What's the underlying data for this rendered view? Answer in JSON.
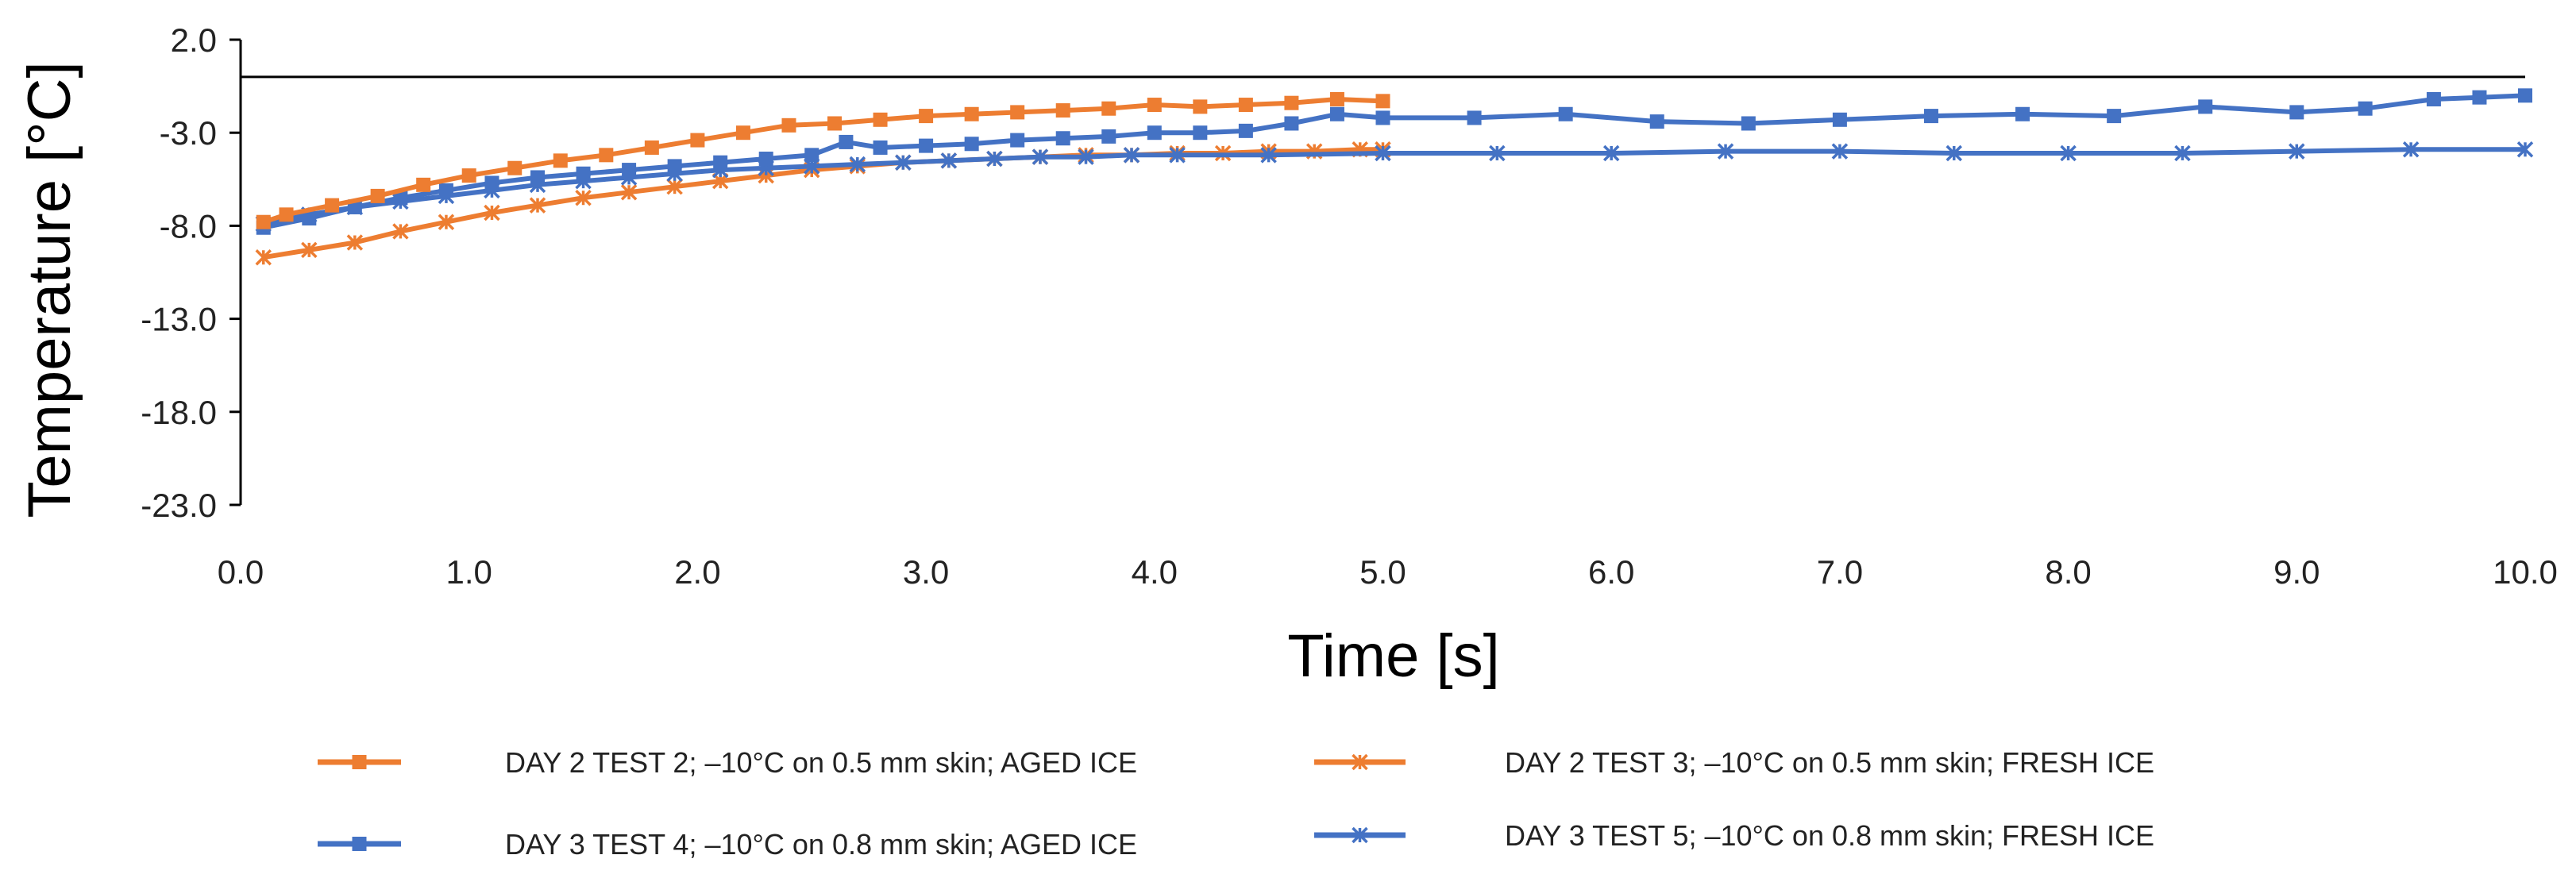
{
  "chart_data": {
    "type": "line",
    "title": "",
    "xlabel": "Time [s]",
    "ylabel": "Temperature [°C]",
    "xlim": [
      0,
      10
    ],
    "ylim": [
      -23,
      2
    ],
    "x_ticks": [
      0,
      1,
      2,
      3,
      4,
      5,
      6,
      7,
      8,
      9,
      10
    ],
    "x_tick_labels": [
      "0.0",
      "1.0",
      "2.0",
      "3.0",
      "4.0",
      "5.0",
      "6.0",
      "7.0",
      "8.0",
      "9.0",
      "10.0"
    ],
    "y_ticks": [
      2,
      -3,
      -8,
      -13,
      -18,
      -23
    ],
    "y_tick_labels": [
      "2.0",
      "-3.0",
      "-8.0",
      "-13.0",
      "-18.0",
      "-23.0"
    ],
    "grid": false,
    "legend_position": "bottom",
    "series": [
      {
        "name": "DAY 2 TEST 2; –10°C on 0.5 mm skin;  AGED ICE",
        "color": "#ED7D31",
        "marker": "square",
        "x": [
          0.1,
          0.2,
          0.4,
          0.6,
          0.8,
          1.0,
          1.2,
          1.4,
          1.6,
          1.8,
          2.0,
          2.2,
          2.4,
          2.6,
          2.8,
          3.0,
          3.2,
          3.4,
          3.6,
          3.8,
          4.0,
          4.2,
          4.4,
          4.6,
          4.8,
          5.0
        ],
        "y": [
          -7.8,
          -7.4,
          -6.9,
          -6.4,
          -5.8,
          -5.3,
          -4.9,
          -4.5,
          -4.2,
          -3.8,
          -3.4,
          -3.0,
          -2.6,
          -2.5,
          -2.3,
          -2.1,
          -2.0,
          -1.9,
          -1.8,
          -1.7,
          -1.5,
          -1.6,
          -1.5,
          -1.4,
          -1.2,
          -1.3
        ]
      },
      {
        "name": "DAY 2 TEST 3; –10°C on 0.5 mm skin;  FRESH ICE",
        "color": "#ED7D31",
        "marker": "star",
        "x": [
          0.1,
          0.3,
          0.5,
          0.7,
          0.9,
          1.1,
          1.3,
          1.5,
          1.7,
          1.9,
          2.1,
          2.3,
          2.5,
          2.7,
          2.9,
          3.1,
          3.3,
          3.5,
          3.7,
          3.9,
          4.1,
          4.3,
          4.5,
          4.7,
          4.9,
          5.0
        ],
        "y": [
          -9.7,
          -9.3,
          -8.9,
          -8.3,
          -7.8,
          -7.3,
          -6.9,
          -6.5,
          -6.2,
          -5.9,
          -5.6,
          -5.3,
          -5.0,
          -4.8,
          -4.6,
          -4.5,
          -4.4,
          -4.3,
          -4.2,
          -4.2,
          -4.1,
          -4.1,
          -4.0,
          -4.0,
          -3.9,
          -3.9
        ]
      },
      {
        "name": "DAY 3 TEST 4; –10°C on 0.8 mm skin;  AGED ICE",
        "color": "#4472C4",
        "marker": "square",
        "x": [
          0.1,
          0.3,
          0.5,
          0.7,
          0.9,
          1.1,
          1.3,
          1.5,
          1.7,
          1.9,
          2.1,
          2.3,
          2.5,
          2.65,
          2.8,
          3.0,
          3.2,
          3.4,
          3.6,
          3.8,
          4.0,
          4.2,
          4.4,
          4.6,
          4.8,
          5.0,
          5.4,
          5.8,
          6.2,
          6.6,
          7.0,
          7.4,
          7.8,
          8.2,
          8.6,
          9.0,
          9.3,
          9.6,
          9.8,
          10.0
        ],
        "y": [
          -8.1,
          -7.6,
          -7.0,
          -6.5,
          -6.1,
          -5.7,
          -5.4,
          -5.2,
          -5.0,
          -4.8,
          -4.6,
          -4.4,
          -4.2,
          -3.5,
          -3.8,
          -3.7,
          -3.6,
          -3.4,
          -3.3,
          -3.2,
          -3.0,
          -3.0,
          -2.9,
          -2.5,
          -2.0,
          -2.2,
          -2.2,
          -2.0,
          -2.4,
          -2.5,
          -2.3,
          -2.1,
          -2.0,
          -2.1,
          -1.6,
          -1.9,
          -1.7,
          -1.2,
          -1.1,
          -1.0
        ]
      },
      {
        "name": "DAY 3 TEST 5; –10°C on 0.8 mm skin;  FRESH ICE",
        "color": "#4472C4",
        "marker": "star",
        "x": [
          0.1,
          0.3,
          0.5,
          0.7,
          0.9,
          1.1,
          1.3,
          1.5,
          1.7,
          1.9,
          2.1,
          2.3,
          2.5,
          2.7,
          2.9,
          3.1,
          3.3,
          3.5,
          3.7,
          3.9,
          4.1,
          4.5,
          5.0,
          5.5,
          6.0,
          6.5,
          7.0,
          7.5,
          8.0,
          8.5,
          9.0,
          9.5,
          10.0
        ],
        "y": [
          -7.9,
          -7.4,
          -7.0,
          -6.7,
          -6.4,
          -6.1,
          -5.8,
          -5.6,
          -5.4,
          -5.2,
          -5.0,
          -4.9,
          -4.8,
          -4.7,
          -4.6,
          -4.5,
          -4.4,
          -4.3,
          -4.3,
          -4.2,
          -4.2,
          -4.2,
          -4.1,
          -4.1,
          -4.1,
          -4.0,
          -4.0,
          -4.1,
          -4.1,
          -4.1,
          -4.0,
          -3.9,
          -3.9
        ]
      }
    ]
  }
}
